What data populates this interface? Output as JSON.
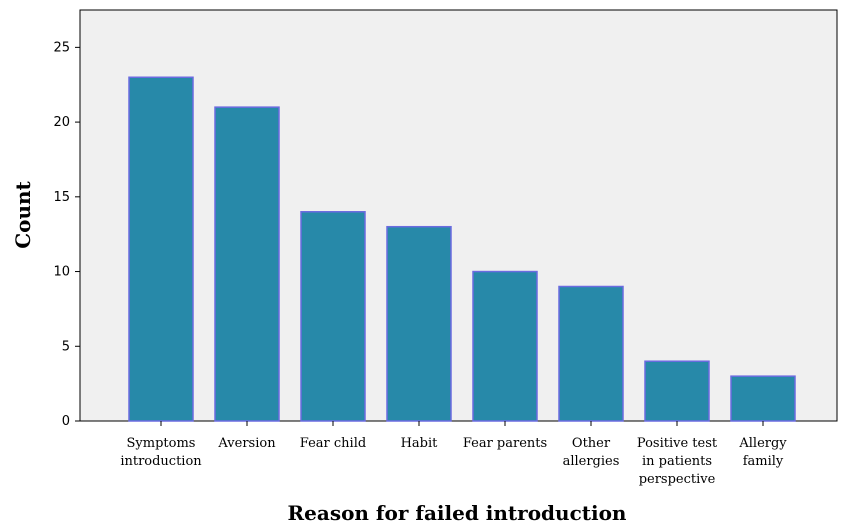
{
  "chart_data": {
    "type": "bar",
    "title": "",
    "xlabel": "Reason for failed introduction",
    "ylabel": "Count",
    "categories": [
      [
        "Symptoms",
        "introduction"
      ],
      [
        "Aversion"
      ],
      [
        "Fear child"
      ],
      [
        "Habit"
      ],
      [
        "Fear parents"
      ],
      [
        "Other",
        "allergies"
      ],
      [
        "Positive test",
        "in patients",
        "perspective"
      ],
      [
        "Allergy",
        "family"
      ]
    ],
    "values": [
      23,
      21,
      14,
      13,
      10,
      9,
      4,
      3
    ],
    "ylim": [
      0,
      27.5
    ],
    "yticks": [
      0,
      5,
      10,
      15,
      20,
      25
    ],
    "grid": false,
    "legend": "none",
    "colors": {
      "plot_background": "#f0f0f0",
      "bar_fill": "#2789a9",
      "bar_stroke": "#6b6be0",
      "axis": "#000000"
    }
  }
}
